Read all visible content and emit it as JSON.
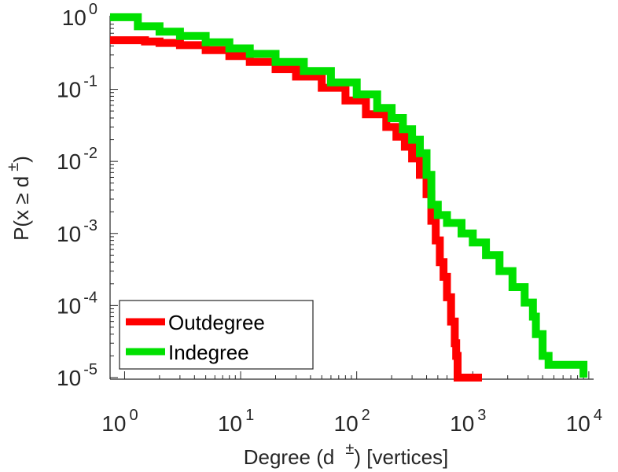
{
  "chart_data": {
    "type": "line",
    "title": "",
    "xlabel": {
      "base": "Degree (d",
      "sup": "±",
      "rest": ") [vertices]"
    },
    "ylabel": {
      "base": "P(x ≥ d",
      "sup": "±",
      "rest": ")"
    },
    "xscale": "log",
    "yscale": "log",
    "xlim": [
      0.75,
      11000
    ],
    "ylim": [
      9.5e-06,
      1.05
    ],
    "grid": false,
    "x_ticks": [
      {
        "base": "10",
        "exp": "0",
        "value": 1
      },
      {
        "base": "10",
        "exp": "1",
        "value": 10
      },
      {
        "base": "10",
        "exp": "2",
        "value": 100
      },
      {
        "base": "10",
        "exp": "3",
        "value": 1000
      },
      {
        "base": "10",
        "exp": "4",
        "value": 10000
      }
    ],
    "y_ticks": [
      {
        "base": "10",
        "exp": "0",
        "value": 1
      },
      {
        "base": "10",
        "exp": "-1",
        "value": 0.1
      },
      {
        "base": "10",
        "exp": "-2",
        "value": 0.01
      },
      {
        "base": "10",
        "exp": "-3",
        "value": 0.001
      },
      {
        "base": "10",
        "exp": "-4",
        "value": 0.0001
      },
      {
        "base": "10",
        "exp": "-5",
        "value": 1e-05
      }
    ],
    "legend_position": "bottom-left",
    "series": [
      {
        "name": "Outdegree",
        "color": "#ff0000",
        "points": [
          [
            0.75,
            0.48
          ],
          [
            1,
            0.48
          ],
          [
            1.5,
            0.46
          ],
          [
            2,
            0.44
          ],
          [
            3,
            0.41
          ],
          [
            5,
            0.35
          ],
          [
            8,
            0.29
          ],
          [
            12,
            0.24
          ],
          [
            20,
            0.19
          ],
          [
            30,
            0.15
          ],
          [
            50,
            0.105
          ],
          [
            80,
            0.07
          ],
          [
            120,
            0.045
          ],
          [
            180,
            0.03
          ],
          [
            220,
            0.022
          ],
          [
            260,
            0.016
          ],
          [
            300,
            0.011
          ],
          [
            350,
            0.0065
          ],
          [
            400,
            0.0035
          ],
          [
            440,
            0.0015
          ],
          [
            480,
            0.0008
          ],
          [
            520,
            0.0004
          ],
          [
            560,
            0.00025
          ],
          [
            600,
            0.00013
          ],
          [
            650,
            6e-05
          ],
          [
            700,
            3e-05
          ],
          [
            720,
            2e-05
          ],
          [
            740,
            1e-05
          ],
          [
            1200,
            1e-05
          ]
        ]
      },
      {
        "name": "Indegree",
        "color": "#00e000",
        "points": [
          [
            0.75,
            1
          ],
          [
            1.05,
            1
          ],
          [
            1.3,
            0.75
          ],
          [
            2,
            0.63
          ],
          [
            3,
            0.55
          ],
          [
            5,
            0.45
          ],
          [
            8,
            0.37
          ],
          [
            12,
            0.31
          ],
          [
            20,
            0.24
          ],
          [
            35,
            0.18
          ],
          [
            60,
            0.125
          ],
          [
            100,
            0.085
          ],
          [
            150,
            0.055
          ],
          [
            200,
            0.04
          ],
          [
            250,
            0.028
          ],
          [
            300,
            0.02
          ],
          [
            350,
            0.013
          ],
          [
            400,
            0.0065
          ],
          [
            440,
            0.0025
          ],
          [
            500,
            0.0018
          ],
          [
            600,
            0.0014
          ],
          [
            800,
            0.001
          ],
          [
            1000,
            0.00075
          ],
          [
            1300,
            0.0005
          ],
          [
            1700,
            0.0003
          ],
          [
            2200,
            0.00018
          ],
          [
            2800,
            0.00011
          ],
          [
            3300,
            7e-05
          ],
          [
            3500,
            4e-05
          ],
          [
            4000,
            2e-05
          ],
          [
            4500,
            1.5e-05
          ],
          [
            5000,
            1.5e-05
          ],
          [
            8800,
            1.5e-05
          ],
          [
            9000,
            1e-05
          ]
        ]
      }
    ]
  }
}
